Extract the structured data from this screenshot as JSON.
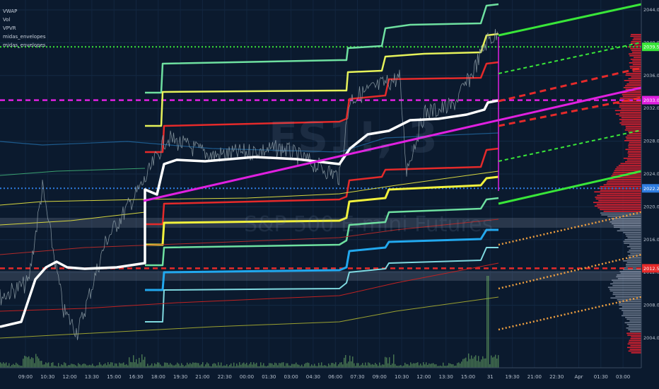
{
  "legend": [
    "VWAP",
    "Vol",
    "VPVR",
    "midas_envelopes",
    "midas_envelopes"
  ],
  "watermark": {
    "symbol": "ES1!, 3",
    "name": "S&P 500 E-mini Futures"
  },
  "chart_data": {
    "type": "line",
    "y_axis": {
      "ticks": [
        2044.0,
        2040.0,
        2036.0,
        2032.0,
        2028.0,
        2024.0,
        2020.0,
        2016.0,
        2012.0,
        2008.0,
        2004.0
      ],
      "range": [
        2002.0,
        2045.5
      ]
    },
    "x_axis": {
      "ticks": [
        "09:00",
        "10:30",
        "12:00",
        "13:30",
        "15:00",
        "16:30",
        "18:00",
        "19:30",
        "21:00",
        "22:30",
        "00:00",
        "01:30",
        "03:00",
        "04:30",
        "06:00",
        "07:30",
        "09:00",
        "10:30",
        "12:00",
        "13:30",
        "15:00",
        "31",
        "19:30",
        "21:00",
        "22:30",
        "Apr",
        "01:30",
        "03:00"
      ]
    },
    "price_labels": [
      {
        "value": "2039.50",
        "color": "#39e639"
      },
      {
        "value": "2033.00",
        "color": "#e020e0"
      },
      {
        "value": "2022.25",
        "color": "#2f7de1"
      },
      {
        "value": "2012.50",
        "color": "#e52a2a"
      }
    ],
    "hlines": [
      {
        "value": 2039.5,
        "color": "#39e639",
        "style": "dotted"
      },
      {
        "value": 2033.0,
        "color": "#e020e0",
        "style": "dashed"
      },
      {
        "value": 2022.25,
        "color": "#2f7de1",
        "style": "dotted"
      },
      {
        "value": 2012.5,
        "color": "#e52a2a",
        "style": "dashed"
      }
    ],
    "colors": {
      "background": "#0b1a2e",
      "price": "#8fa0a8",
      "vwap": "#ffffff",
      "magenta": "#e020e0",
      "green": "#39e639",
      "yellow": "#f2f23c",
      "red": "#e52a2a",
      "cyan": "#22a8ee",
      "mint": "#6ee0a0",
      "orange": "#f0a040",
      "volume_profile": "#e0202f"
    }
  }
}
